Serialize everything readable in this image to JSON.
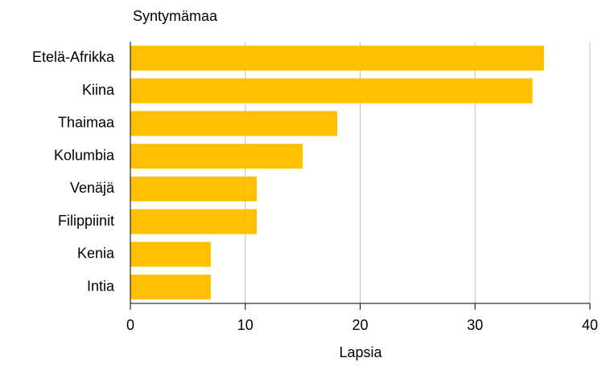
{
  "chart_data": {
    "type": "bar",
    "orientation": "horizontal",
    "y_axis_label": "Syntymämaa",
    "x_axis_label": "Lapsia",
    "categories": [
      "Etelä-Afrikka",
      "Kiina",
      "Thaimaa",
      "Kolumbia",
      "Venäjä",
      "Filippiinit",
      "Kenia",
      "Intia"
    ],
    "values": [
      36,
      35,
      18,
      15,
      11,
      11,
      7,
      7
    ],
    "color": "#ffc000",
    "xlim": [
      0,
      40
    ],
    "xticks": [
      0,
      10,
      20,
      30,
      40
    ],
    "grid": true
  }
}
